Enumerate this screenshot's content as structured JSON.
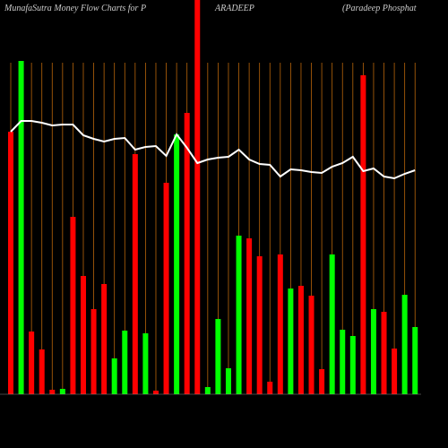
{
  "chart_data": {
    "type": "bar",
    "title_parts": [
      "MunafaSutra  Money Flow  Charts for P",
      "ARADEEP",
      "(Paradeep Phosphat"
    ],
    "ylim": [
      0,
      440
    ],
    "values": [
      293,
      372,
      70,
      50,
      5,
      6,
      198,
      132,
      95,
      123,
      40,
      71,
      268,
      68,
      4,
      236,
      290,
      314,
      440,
      8,
      84,
      29,
      177,
      174,
      154,
      14,
      156,
      118,
      121,
      110,
      28,
      156,
      72,
      65,
      356,
      95,
      92,
      51,
      111,
      75
    ],
    "colors": [
      "red",
      "lime",
      "red",
      "red",
      "red",
      "lime",
      "red",
      "red",
      "red",
      "red",
      "lime",
      "lime",
      "red",
      "lime",
      "red",
      "red",
      "lime",
      "red",
      "red",
      "lime",
      "lime",
      "lime",
      "lime",
      "red",
      "red",
      "red",
      "red",
      "lime",
      "red",
      "red",
      "red",
      "lime",
      "lime",
      "lime",
      "red",
      "lime",
      "red",
      "red",
      "lime",
      "lime"
    ],
    "line": {
      "color": "white",
      "values": [
        293,
        305,
        305,
        303,
        300,
        301,
        301,
        289,
        285,
        282,
        285,
        286,
        273,
        276,
        277,
        266,
        290,
        275,
        258,
        262,
        264,
        265,
        273,
        262,
        257,
        256,
        243,
        251,
        250,
        248,
        247,
        254,
        258,
        265,
        249,
        252,
        243,
        241,
        246,
        250
      ]
    }
  }
}
